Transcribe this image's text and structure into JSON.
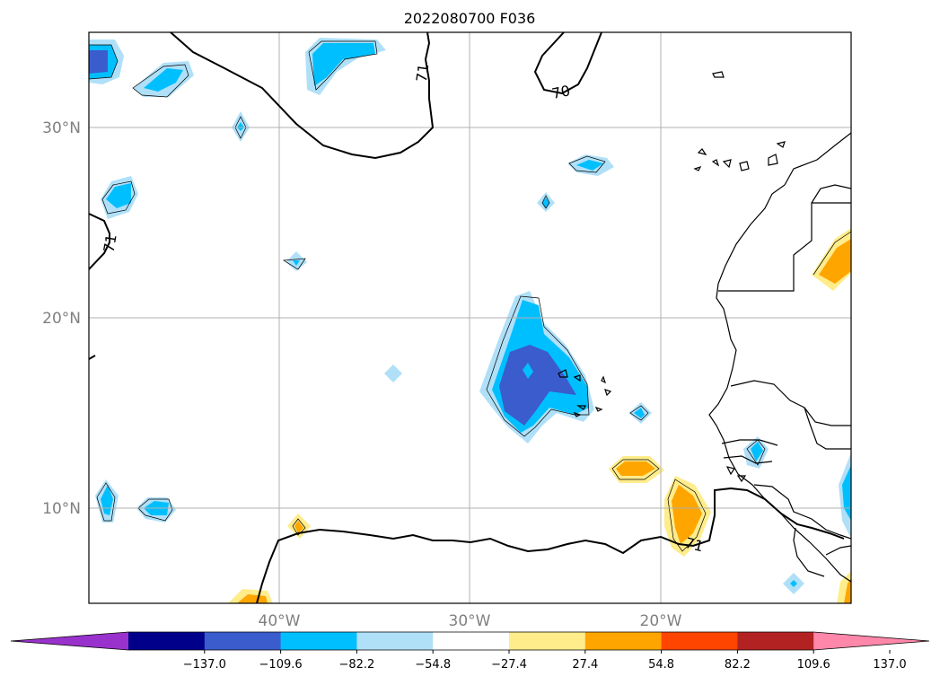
{
  "title": "2022080700 F036",
  "lat_labels": [
    "30°N",
    "20°N",
    "10°N"
  ],
  "lon_labels": [
    "40°W",
    "30°W",
    "20°W"
  ],
  "contour_labels": [
    "71",
    "70",
    "71",
    "71"
  ],
  "colorbar": {
    "tick_labels": [
      "−137.0",
      "−109.6",
      "−82.2",
      "−54.8",
      "−27.4",
      "27.4",
      "54.8",
      "82.2",
      "109.6",
      "137.0"
    ],
    "colors": [
      "#9932cc",
      "#00008b",
      "#3a5ccc",
      "#00bfff",
      "#b0e0f8",
      "#ffffff",
      "#ffec8b",
      "#ffa500",
      "#ff4500",
      "#b22222",
      "#ff88aa"
    ]
  },
  "colors": {
    "land_outline": "#000000",
    "gridline": "#b0b0b0",
    "contour": "#000000"
  }
}
